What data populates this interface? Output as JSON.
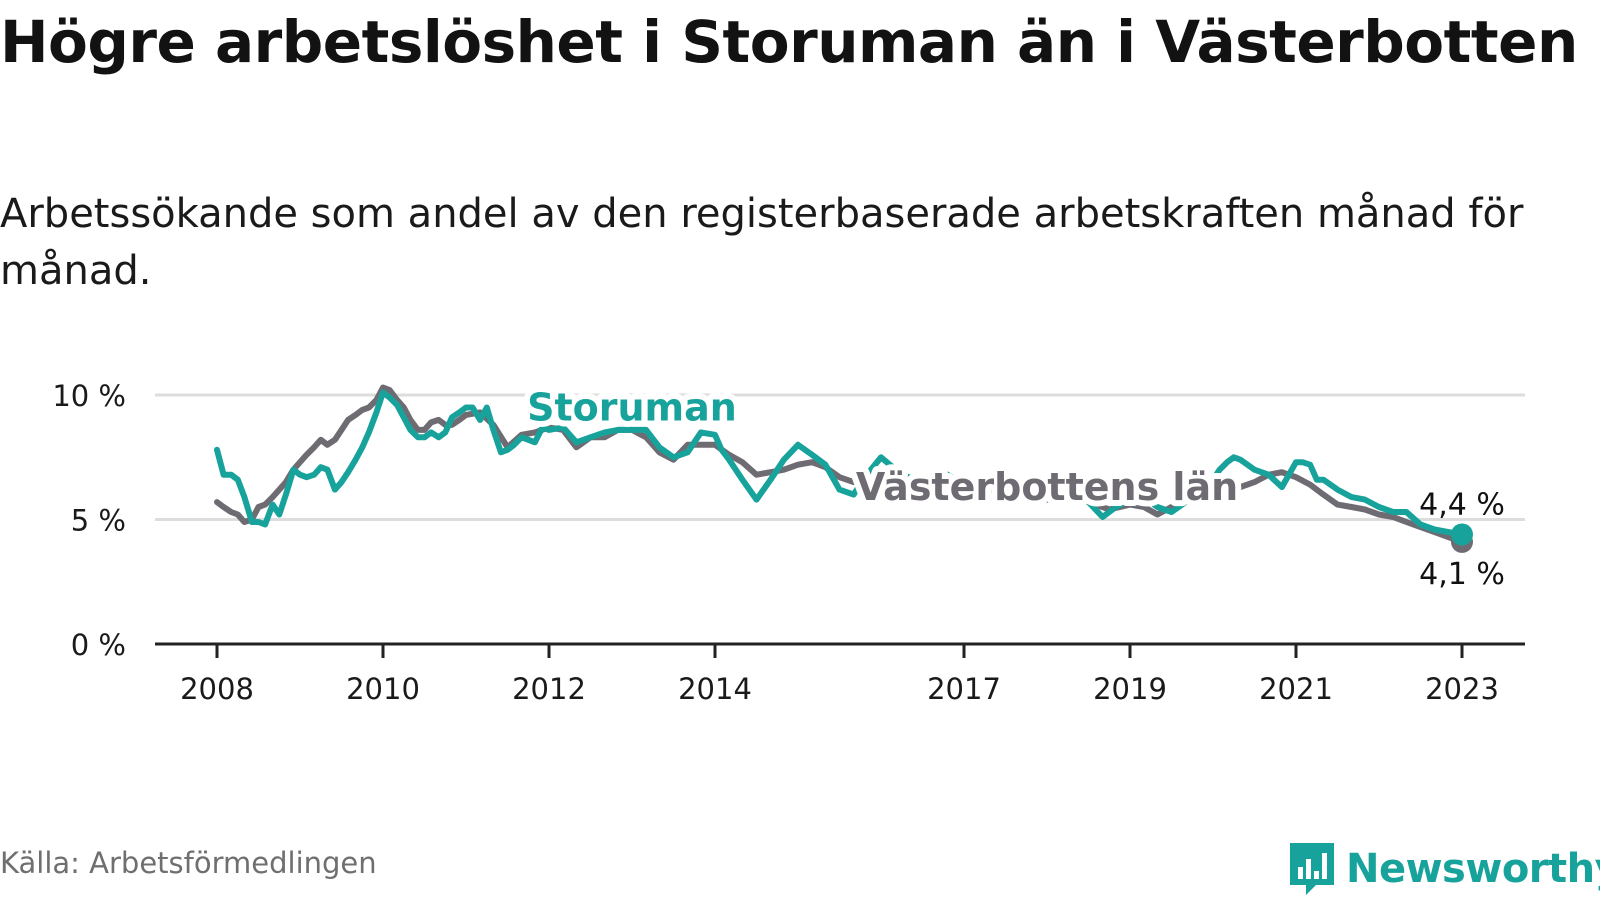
{
  "title": "Högre arbetslöshet i Storuman än i Västerbotten",
  "subtitle": "Arbetssökande som andel av den registerbaserade arbetskraften månad för månad.",
  "source": "Källa: Arbetsförmedlingen",
  "brand": {
    "name": "Newsworthy",
    "icon": "newsworthy-logo-icon"
  },
  "colors": {
    "storuman": "#17a39b",
    "vasterbotten": "#6f6b72",
    "grid": "#dddddd",
    "axis": "#222222"
  },
  "chart_data": {
    "type": "line",
    "title": "Högre arbetslöshet i Storuman än i Västerbotten",
    "xlabel": "",
    "ylabel": "",
    "xlim": [
      2008.0,
      2023.0
    ],
    "ylim": [
      0,
      10
    ],
    "y_ticks": [
      {
        "value": 0,
        "label": "0 %"
      },
      {
        "value": 5,
        "label": "5 %"
      },
      {
        "value": 10,
        "label": "10 %"
      }
    ],
    "x_ticks": [
      {
        "value": 2008,
        "label": "2008"
      },
      {
        "value": 2010,
        "label": "2010"
      },
      {
        "value": 2012,
        "label": "2012"
      },
      {
        "value": 2014,
        "label": "2014"
      },
      {
        "value": 2017,
        "label": "2017"
      },
      {
        "value": 2019,
        "label": "2019"
      },
      {
        "value": 2021,
        "label": "2021"
      },
      {
        "value": 2023,
        "label": "2023"
      }
    ],
    "grid": true,
    "series": [
      {
        "name": "Västerbottens län",
        "color": "#6f6b72",
        "end_label": "4,1 %",
        "x": [
          2008.0,
          2008.08,
          2008.17,
          2008.25,
          2008.33,
          2008.42,
          2008.5,
          2008.58,
          2008.67,
          2008.75,
          2008.83,
          2008.92,
          2009.0,
          2009.08,
          2009.17,
          2009.25,
          2009.33,
          2009.42,
          2009.5,
          2009.58,
          2009.67,
          2009.75,
          2009.83,
          2009.92,
          2010.0,
          2010.08,
          2010.17,
          2010.25,
          2010.33,
          2010.42,
          2010.5,
          2010.58,
          2010.67,
          2010.75,
          2010.83,
          2010.92,
          2011.0,
          2011.17,
          2011.33,
          2011.5,
          2011.67,
          2011.83,
          2012.0,
          2012.17,
          2012.33,
          2012.5,
          2012.67,
          2012.83,
          2013.0,
          2013.17,
          2013.33,
          2013.5,
          2013.67,
          2013.83,
          2014.0,
          2014.17,
          2014.33,
          2014.5,
          2014.67,
          2014.83,
          2015.0,
          2015.17,
          2015.33,
          2015.5,
          2015.67,
          2015.83,
          2016.0,
          2016.25,
          2016.5,
          2016.75,
          2017.0,
          2017.25,
          2017.5,
          2017.75,
          2018.0,
          2018.25,
          2018.5,
          2018.75,
          2019.0,
          2019.17,
          2019.33,
          2019.5,
          2019.67,
          2019.83,
          2020.0,
          2020.17,
          2020.33,
          2020.5,
          2020.67,
          2020.83,
          2021.0,
          2021.17,
          2021.33,
          2021.5,
          2021.67,
          2021.83,
          2022.0,
          2022.17,
          2022.33,
          2022.5,
          2022.67,
          2022.83,
          2023.0
        ],
        "values": [
          5.7,
          5.5,
          5.3,
          5.2,
          4.9,
          5.0,
          5.5,
          5.6,
          5.9,
          6.2,
          6.5,
          7.0,
          7.3,
          7.6,
          7.9,
          8.2,
          8.0,
          8.2,
          8.6,
          9.0,
          9.2,
          9.4,
          9.5,
          9.8,
          10.3,
          10.2,
          9.8,
          9.5,
          9.0,
          8.6,
          8.6,
          8.9,
          9.0,
          8.8,
          8.8,
          9.0,
          9.2,
          9.3,
          8.8,
          7.9,
          8.4,
          8.5,
          8.7,
          8.6,
          7.9,
          8.3,
          8.3,
          8.6,
          8.6,
          8.3,
          7.7,
          7.4,
          8.0,
          8.0,
          8.0,
          7.6,
          7.3,
          6.8,
          6.9,
          7.0,
          7.2,
          7.3,
          7.1,
          6.7,
          6.5,
          6.7,
          6.9,
          6.5,
          6.3,
          6.2,
          6.5,
          6.3,
          6.0,
          5.9,
          5.8,
          5.9,
          5.7,
          5.4,
          5.6,
          5.5,
          5.2,
          5.5,
          5.8,
          5.9,
          6.1,
          6.3,
          6.3,
          6.5,
          6.8,
          6.9,
          6.7,
          6.4,
          6.0,
          5.6,
          5.5,
          5.4,
          5.2,
          5.1,
          4.9,
          4.7,
          4.5,
          4.3,
          4.1
        ]
      },
      {
        "name": "Storuman",
        "color": "#17a39b",
        "end_label": "4,4 %",
        "x": [
          2008.0,
          2008.08,
          2008.17,
          2008.25,
          2008.33,
          2008.42,
          2008.5,
          2008.58,
          2008.67,
          2008.75,
          2008.83,
          2008.92,
          2009.0,
          2009.08,
          2009.17,
          2009.25,
          2009.33,
          2009.42,
          2009.5,
          2009.58,
          2009.67,
          2009.75,
          2009.83,
          2009.92,
          2010.0,
          2010.08,
          2010.17,
          2010.25,
          2010.33,
          2010.42,
          2010.5,
          2010.58,
          2010.67,
          2010.75,
          2010.83,
          2010.92,
          2011.0,
          2011.08,
          2011.17,
          2011.25,
          2011.33,
          2011.42,
          2011.5,
          2011.58,
          2011.67,
          2011.75,
          2011.83,
          2011.92,
          2012.0,
          2012.17,
          2012.33,
          2012.5,
          2012.67,
          2012.83,
          2013.0,
          2013.17,
          2013.33,
          2013.5,
          2013.67,
          2013.83,
          2014.0,
          2014.08,
          2014.17,
          2014.33,
          2014.5,
          2014.67,
          2014.83,
          2015.0,
          2015.17,
          2015.33,
          2015.5,
          2015.67,
          2015.83,
          2016.0,
          2016.25,
          2016.5,
          2016.75,
          2017.0,
          2017.25,
          2017.5,
          2017.75,
          2018.0,
          2018.25,
          2018.5,
          2018.67,
          2018.83,
          2019.0,
          2019.17,
          2019.33,
          2019.5,
          2019.67,
          2019.83,
          2020.0,
          2020.08,
          2020.17,
          2020.25,
          2020.33,
          2020.5,
          2020.67,
          2020.83,
          2021.0,
          2021.08,
          2021.17,
          2021.25,
          2021.33,
          2021.5,
          2021.67,
          2021.83,
          2022.0,
          2022.17,
          2022.33,
          2022.5,
          2022.67,
          2022.83,
          2023.0
        ],
        "values": [
          7.8,
          6.8,
          6.8,
          6.6,
          5.9,
          4.9,
          4.9,
          4.8,
          5.6,
          5.2,
          6.0,
          7.0,
          6.8,
          6.7,
          6.8,
          7.1,
          7.0,
          6.2,
          6.5,
          6.9,
          7.4,
          7.9,
          8.5,
          9.3,
          10.1,
          9.9,
          9.6,
          9.1,
          8.6,
          8.3,
          8.3,
          8.5,
          8.3,
          8.5,
          9.1,
          9.3,
          9.5,
          9.5,
          9.0,
          9.5,
          8.6,
          7.7,
          7.8,
          8.0,
          8.3,
          8.2,
          8.1,
          8.7,
          8.6,
          8.7,
          8.1,
          8.3,
          8.5,
          8.6,
          8.6,
          8.6,
          7.9,
          7.5,
          7.7,
          8.5,
          8.4,
          7.8,
          7.4,
          6.6,
          5.8,
          6.6,
          7.4,
          8.0,
          7.6,
          7.2,
          6.2,
          6.0,
          6.8,
          7.5,
          6.8,
          6.5,
          6.9,
          6.4,
          6.3,
          6.0,
          6.1,
          6.3,
          5.9,
          5.7,
          5.1,
          5.5,
          5.8,
          5.9,
          5.5,
          5.3,
          5.7,
          6.2,
          6.6,
          7.0,
          7.3,
          7.5,
          7.4,
          7.0,
          6.8,
          6.3,
          7.3,
          7.3,
          7.2,
          6.6,
          6.6,
          6.2,
          5.9,
          5.8,
          5.5,
          5.3,
          5.3,
          4.8,
          4.6,
          4.5,
          4.4
        ]
      }
    ],
    "annotations": [
      {
        "text": "Storuman",
        "series": "Storuman",
        "x": 2013.0,
        "y": 9.5
      },
      {
        "text": "Västerbottens län",
        "series": "Västerbottens län",
        "x": 2018.0,
        "y": 6.3
      }
    ]
  }
}
